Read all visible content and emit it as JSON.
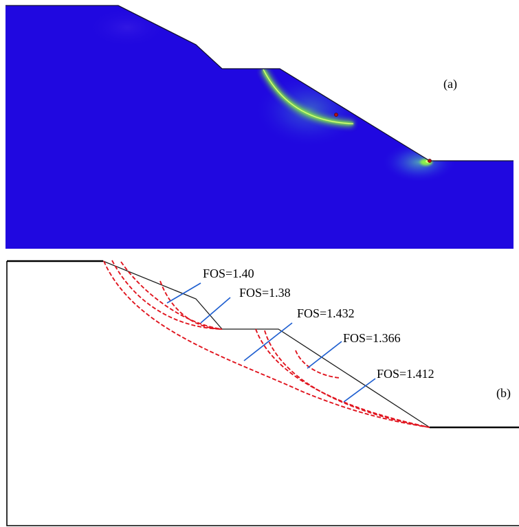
{
  "panel_a": {
    "label": "(a)",
    "colors": {
      "background": "#2008e0",
      "band": "#7cf03c",
      "band_core": "#d8ff70",
      "glow": "#4aa8c0",
      "point": "#b01010"
    }
  },
  "panel_b": {
    "label": "(b)",
    "slip_surfaces": [
      {
        "fos_label": "FOS=1.40"
      },
      {
        "fos_label": "FOS=1.38"
      },
      {
        "fos_label": "FOS=1.432"
      },
      {
        "fos_label": "FOS=1.366"
      },
      {
        "fos_label": "FOS=1.412"
      }
    ],
    "colors": {
      "slope": "#000000",
      "slip_curve": "#e0141e",
      "leader": "#1f5fd0",
      "text": "#000000"
    }
  }
}
